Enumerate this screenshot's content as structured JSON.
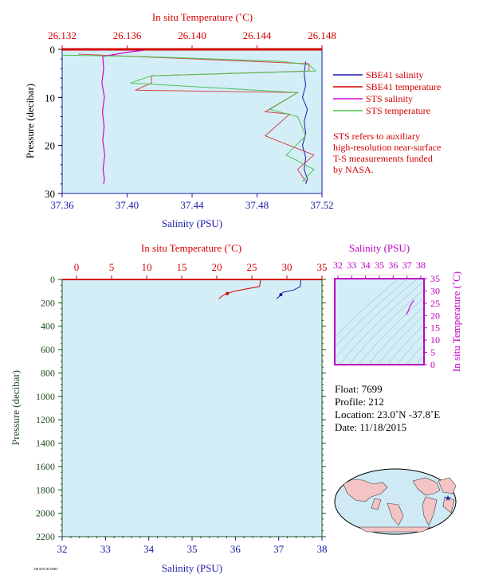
{
  "chart_data": [
    {
      "type": "line",
      "top_axis_title": "In situ Temperature (˚C)",
      "bottom_axis_title": "Salinity (PSU)",
      "left_axis_title": "Pressure (decibar)",
      "top_ticks": [
        "26.132",
        "26.136",
        "26.140",
        "26.144",
        "26.148"
      ],
      "top_range": [
        26.132,
        26.148
      ],
      "bottom_ticks": [
        "37.36",
        "37.40",
        "37.44",
        "37.48",
        "37.52"
      ],
      "bottom_range": [
        37.36,
        37.52
      ],
      "left_ticks": [
        "0",
        "10",
        "20",
        "30"
      ],
      "left_range": [
        0,
        30
      ],
      "legend": [
        {
          "name": "SBE41 salinity",
          "color": "#1a1aa8"
        },
        {
          "name": "SBE41 temperature",
          "color": "#d40000"
        },
        {
          "name": "STS salinity",
          "color": "#d400d4"
        },
        {
          "name": "STS temperature",
          "color": "#4ec24e"
        }
      ],
      "note": [
        "STS refers to auxiliary",
        "high-resolution near-surface",
        "T-S measurements funded",
        "by NASA."
      ],
      "series": [
        {
          "name": "SBE41 salinity",
          "x": [
            37.51,
            37.509,
            37.51,
            37.508,
            37.511,
            37.509,
            37.51,
            37.508,
            37.51,
            37.509,
            37.511,
            37.51
          ],
          "y": [
            2.5,
            5,
            7.5,
            10,
            12.5,
            15,
            17.5,
            20,
            22.5,
            25,
            27,
            28
          ]
        },
        {
          "name": "SBE41 temperature",
          "x": [
            26.133,
            26.1472,
            26.1472,
            26.1375,
            26.1375,
            26.1365,
            26.1465,
            26.1445,
            26.146,
            26.1455,
            26.1445,
            26.1475,
            26.1465,
            26.147
          ],
          "y": [
            1,
            3,
            4.5,
            5.5,
            7,
            8.5,
            9,
            13,
            13.5,
            15,
            18,
            22,
            25,
            27.5
          ]
        },
        {
          "name": "STS salinity",
          "x": [
            37.41,
            37.4,
            37.385,
            37.3855,
            37.3845,
            37.386,
            37.3848,
            37.3858,
            37.385,
            37.3862,
            37.3852,
            37.386,
            37.3855
          ],
          "y": [
            0.2,
            0.6,
            1.5,
            4,
            7,
            10,
            13,
            16,
            19,
            22,
            25,
            27,
            28
          ]
        },
        {
          "name": "STS temperature",
          "x": [
            26.132,
            26.137,
            26.1455,
            26.1472,
            26.1476,
            26.1375,
            26.1362,
            26.1465,
            26.1448,
            26.1465,
            26.147,
            26.1458,
            26.1475,
            26.1468
          ],
          "y": [
            1.2,
            1.5,
            2.5,
            3.2,
            4.5,
            5.5,
            7,
            9,
            12.5,
            14,
            18,
            22,
            25,
            27.5
          ]
        }
      ]
    },
    {
      "type": "line",
      "top_axis_title": "In situ Temperature (˚C)",
      "bottom_axis_title": "Salinity (PSU)",
      "left_axis_title": "Pressure (decibar)",
      "top_ticks": [
        "0",
        "5",
        "10",
        "15",
        "20",
        "25",
        "30",
        "35"
      ],
      "top_range": [
        0,
        35
      ],
      "bottom_ticks": [
        "32",
        "33",
        "34",
        "35",
        "36",
        "37",
        "38"
      ],
      "bottom_range": [
        32,
        38
      ],
      "left_ticks": [
        "0",
        "200",
        "400",
        "600",
        "800",
        "1000",
        "1200",
        "1400",
        "1600",
        "1800",
        "2000",
        "2200"
      ],
      "left_range": [
        0,
        2200
      ],
      "series": [
        {
          "name": "temperature",
          "x": [
            26.3,
            26.2,
            26.1,
            22.5,
            21.5,
            20.8,
            20.3
          ],
          "y": [
            0,
            20,
            60,
            100,
            120,
            140,
            165
          ]
        },
        {
          "name": "salinity",
          "x": [
            37.51,
            37.5,
            37.35,
            37.1,
            37.05,
            37.0,
            36.95
          ],
          "y": [
            0,
            60,
            90,
            110,
            130,
            150,
            165
          ]
        }
      ]
    },
    {
      "type": "scatter",
      "top_axis_title": "Salinity (PSU)",
      "right_axis_title": "In situ Temperature (˚C)",
      "top_ticks": [
        "32",
        "33",
        "34",
        "35",
        "36",
        "37",
        "38"
      ],
      "top_range": [
        32,
        38
      ],
      "right_ticks": [
        "0",
        "5",
        "10",
        "15",
        "20",
        "25",
        "30",
        "35"
      ],
      "right_range": [
        0,
        35
      ],
      "series": [
        {
          "name": "T-S",
          "x": [
            36.95,
            37.0,
            37.1,
            37.2,
            37.35,
            37.5
          ],
          "y": [
            20.3,
            21.0,
            22.0,
            23.5,
            25.0,
            26.2
          ]
        }
      ]
    }
  ],
  "float_info": {
    "float": "Float:  7699",
    "profile": "Profile:  212",
    "location": "Location:  23.0˚N  -37.8˚E",
    "date": "Date:  11/18/2015"
  },
  "footnote": "AMATEUR KBRT"
}
